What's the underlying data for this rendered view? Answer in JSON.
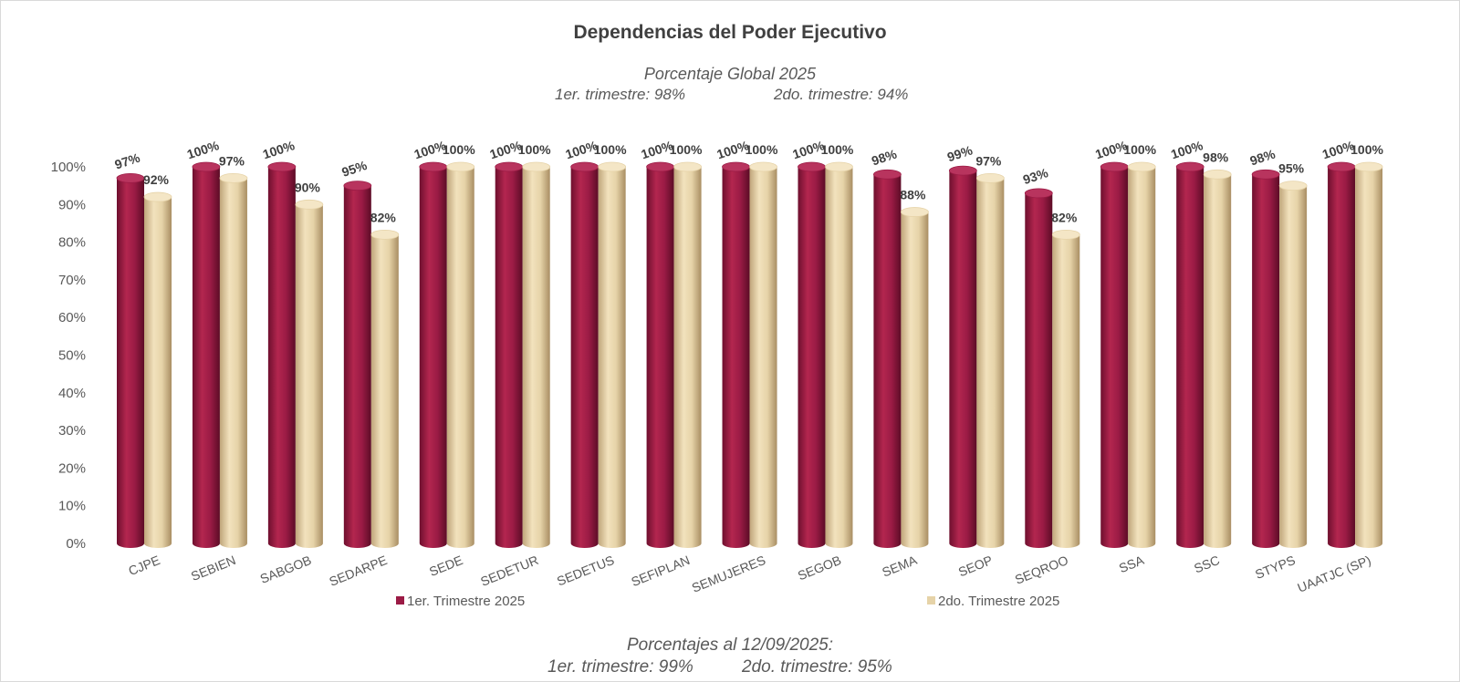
{
  "title": "Dependencias del Poder Ejecutivo",
  "subtitle": "Porcentaje Global  2025",
  "subtitle_q1": "1er. trimestre: 98%",
  "subtitle_q2": "2do. trimestre: 94%",
  "footer_title": "Porcentajes al 12/09/2025:",
  "footer_q1": "1er. trimestre: 99%",
  "footer_q2": "2do. trimestre: 95%",
  "colors": {
    "series1": "#9b1b45",
    "series2": "#e6d3a8",
    "label": "#404040"
  },
  "chart_data": {
    "type": "bar",
    "title": "Dependencias del Poder Ejecutivo",
    "categories": [
      "CJPE",
      "SEBIEN",
      "SABGOB",
      "SEDARPE",
      "SEDE",
      "SEDETUR",
      "SEDETUS",
      "SEFIPLAN",
      "SEMUJERES",
      "SEGOB",
      "SEMA",
      "SEOP",
      "SEQROO",
      "SSA",
      "SSC",
      "STYPS",
      "UAATJC (SP)"
    ],
    "series": [
      {
        "name": "1er. Trimestre 2025",
        "values": [
          97,
          100,
          100,
          95,
          100,
          100,
          100,
          100,
          100,
          100,
          98,
          99,
          93,
          100,
          100,
          98,
          100
        ],
        "labels": [
          "97%",
          "100%",
          "100%",
          "95%",
          "100%",
          "100%",
          "100%",
          "100%",
          "100%",
          "100%",
          "98%",
          "99%",
          "93%",
          "100%",
          "100%",
          "98%",
          "100%"
        ]
      },
      {
        "name": "2do. Trimestre 2025",
        "values": [
          92,
          97,
          90,
          82,
          100,
          100,
          100,
          100,
          100,
          100,
          88,
          97,
          82,
          100,
          98,
          95,
          100
        ],
        "labels": [
          "92%",
          "97%",
          "90%",
          "82%",
          "100%",
          "100%",
          "100%",
          "100%",
          "100%",
          "100%",
          "88%",
          "97%",
          "82%",
          "100%",
          "98%",
          "95%",
          "100%"
        ]
      }
    ],
    "yticks": [
      "0%",
      "10%",
      "20%",
      "30%",
      "40%",
      "50%",
      "60%",
      "70%",
      "80%",
      "90%",
      "100%"
    ],
    "ylim": [
      0,
      100
    ],
    "legend": "bottom",
    "grid": false
  }
}
